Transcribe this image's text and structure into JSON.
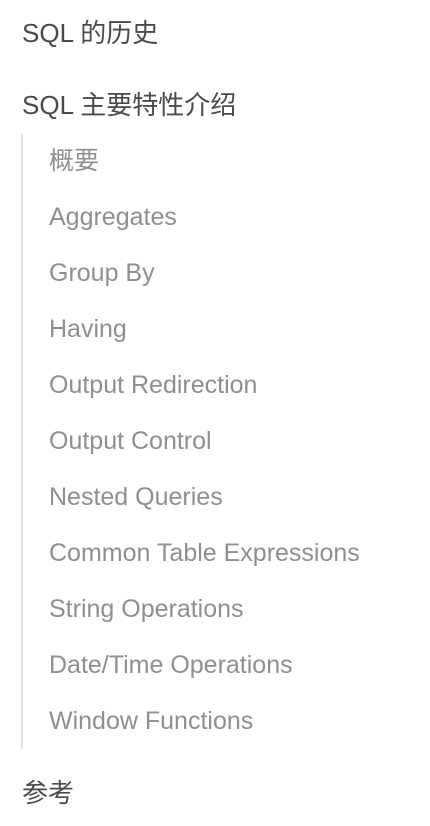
{
  "toc": {
    "top_items": [
      {
        "label": "SQL 的历史"
      },
      {
        "label": "SQL 主要特性介绍"
      },
      {
        "label": "参考"
      }
    ],
    "sub_items": [
      {
        "label": "概要"
      },
      {
        "label": "Aggregates"
      },
      {
        "label": "Group By"
      },
      {
        "label": "Having"
      },
      {
        "label": "Output Redirection"
      },
      {
        "label": "Output Control"
      },
      {
        "label": "Nested Queries"
      },
      {
        "label": "Common Table Expressions"
      },
      {
        "label": "String Operations"
      },
      {
        "label": "Date/Time Operations"
      },
      {
        "label": "Window Functions"
      }
    ]
  },
  "colors": {
    "top_text": "#4a4a4a",
    "sub_text": "#8f8f8f",
    "rail": "#e3e3e3",
    "background": "#ffffff"
  }
}
